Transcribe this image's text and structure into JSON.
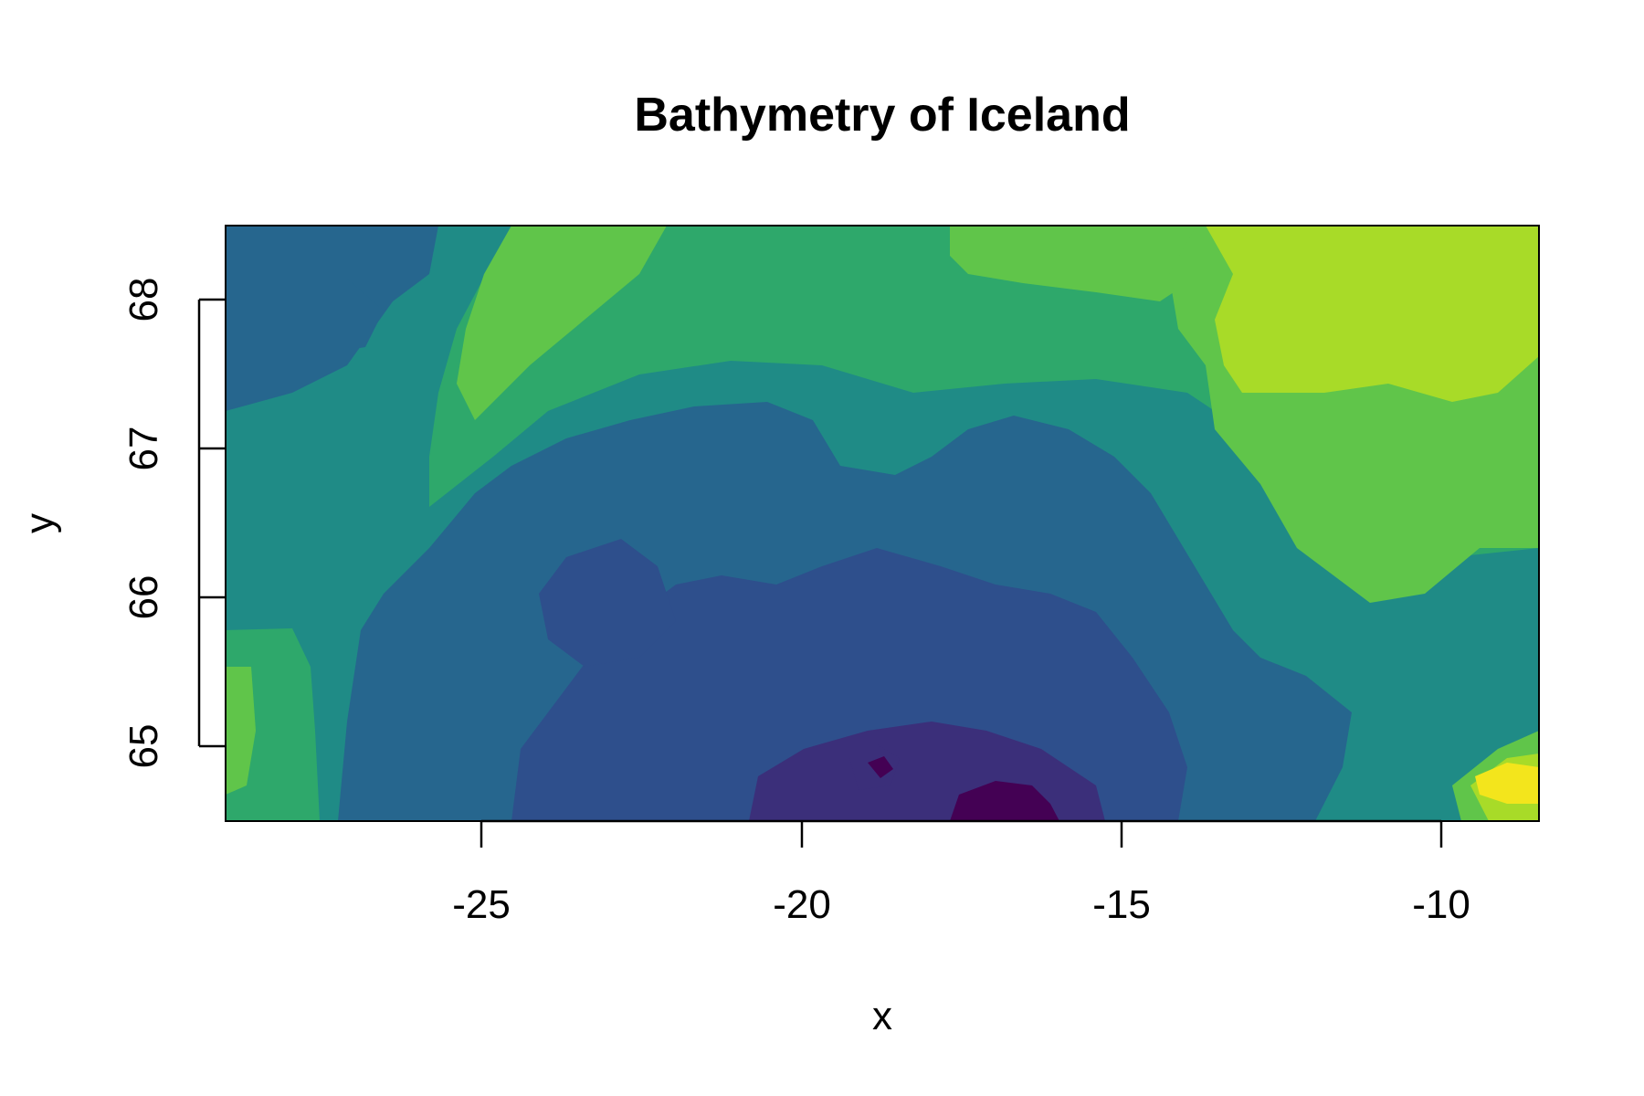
{
  "chart_data": {
    "type": "heatmap",
    "title": "Bathymetry of Iceland",
    "xlabel": "x",
    "ylabel": "y",
    "xlim": [
      -29,
      -8.5
    ],
    "ylim": [
      64.5,
      68.5
    ],
    "x_ticks": [
      -25,
      -20,
      -15,
      -10
    ],
    "y_ticks": [
      65,
      66,
      67,
      68
    ],
    "x_tick_labels": [
      "-25",
      "-20",
      "-15",
      "-10"
    ],
    "y_tick_labels": [
      "65",
      "66",
      "67",
      "68"
    ],
    "colormap": "viridis",
    "palette": [
      "#440154",
      "#3b2f7a",
      "#2e4f8c",
      "#26668e",
      "#1f8b86",
      "#2ea86b",
      "#60c54a",
      "#a8db28",
      "#f3e51c"
    ]
  }
}
